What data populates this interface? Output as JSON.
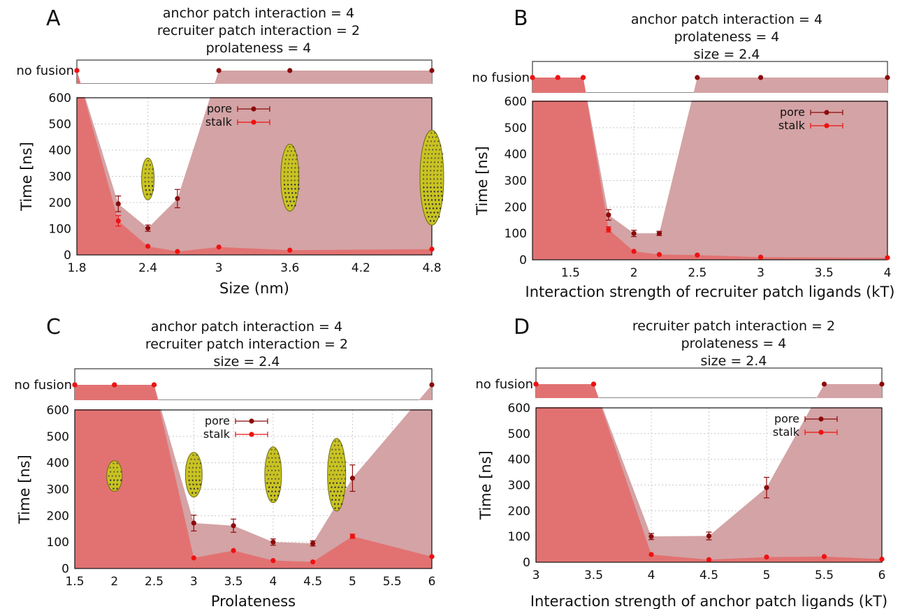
{
  "colors": {
    "pore": "#8b0a0a",
    "stalk": "#ee1111",
    "pore_fill": "#d4a3a5",
    "stalk_fill": "#e27272",
    "grid": "#c8c8c8",
    "particle_body": "#c9c322",
    "particle_dots": "#2b2b3b"
  },
  "legend": {
    "pore": "pore",
    "stalk": "stalk"
  },
  "no_fusion_label": "no fusion",
  "chart_data": [
    {
      "panel": "A",
      "type": "area",
      "title_lines": [
        "anchor patch interaction = 4",
        "recruiter patch interaction = 2",
        "prolateness = 4"
      ],
      "xlabel": "Size (nm)",
      "ylabel": "Time [ns]",
      "xlim": [
        1.8,
        4.8
      ],
      "ylim": [
        0,
        600
      ],
      "xticks": [
        "1.8",
        "2.4",
        "3",
        "3.6",
        "4.2",
        "4.8"
      ],
      "yticks": [
        "0",
        "100",
        "200",
        "300",
        "400",
        "500",
        "600"
      ],
      "grid": true,
      "legend_position": "top-center",
      "series": [
        {
          "name": "pore",
          "x": [
            1.8,
            2.15,
            2.4,
            2.65,
            3.0,
            3.6,
            4.8
          ],
          "y": [
            "no fusion",
            195,
            102,
            215,
            "no fusion",
            "no fusion",
            "no fusion"
          ],
          "err": [
            0,
            30,
            12,
            35,
            0,
            0,
            0
          ]
        },
        {
          "name": "stalk",
          "x": [
            1.8,
            2.15,
            2.4,
            2.65,
            3.0,
            3.6,
            4.8
          ],
          "y": [
            "no fusion",
            130,
            33,
            13,
            30,
            18,
            22
          ],
          "err": [
            0,
            20,
            0,
            0,
            0,
            0,
            0
          ]
        }
      ],
      "particles": [
        {
          "x": 2.4,
          "y": 290,
          "shape": "ellipsoid"
        },
        {
          "x": 3.6,
          "y": 295,
          "shape": "ellipsoid"
        },
        {
          "x": 4.8,
          "y": 295,
          "shape": "ellipsoid"
        }
      ]
    },
    {
      "panel": "B",
      "type": "area",
      "title_lines": [
        "anchor patch interaction = 4",
        "prolateness = 4",
        "size = 2.4"
      ],
      "xlabel": "Interaction strength of recruiter patch ligands (kT)",
      "ylabel": "Time [ns]",
      "xlim": [
        1.2,
        4.0
      ],
      "ylim": [
        0,
        600
      ],
      "xticks": [
        "1.5",
        "2",
        "2.5",
        "3",
        "3.5",
        "4"
      ],
      "yticks": [
        "0",
        "100",
        "200",
        "300",
        "400",
        "500",
        "600"
      ],
      "grid": true,
      "legend_position": "top-right",
      "series": [
        {
          "name": "pore",
          "x": [
            1.2,
            1.4,
            1.6,
            1.8,
            2.0,
            2.2,
            2.5,
            3.0,
            4.0
          ],
          "y": [
            "no fusion",
            "no fusion",
            "no fusion",
            170,
            100,
            100,
            "no fusion",
            "no fusion",
            "no fusion"
          ],
          "err": [
            0,
            0,
            0,
            20,
            12,
            8,
            0,
            0,
            0
          ]
        },
        {
          "name": "stalk",
          "x": [
            1.2,
            1.4,
            1.6,
            1.8,
            2.0,
            2.2,
            2.5,
            3.0,
            4.0
          ],
          "y": [
            "no fusion",
            "no fusion",
            "no fusion",
            115,
            32,
            20,
            18,
            10,
            8
          ],
          "err": [
            0,
            0,
            0,
            10,
            0,
            0,
            0,
            0,
            0
          ]
        }
      ]
    },
    {
      "panel": "C",
      "type": "area",
      "title_lines": [
        "anchor patch interaction = 4",
        "recruiter patch interaction = 2",
        "size = 2.4"
      ],
      "xlabel": "Prolateness",
      "ylabel": "Time [ns]",
      "xlim": [
        1.5,
        6.0
      ],
      "ylim": [
        0,
        600
      ],
      "xticks": [
        "1.5",
        "2",
        "2.5",
        "3",
        "3.5",
        "4",
        "4.5",
        "5",
        "5.5",
        "6"
      ],
      "yticks": [
        "0",
        "100",
        "200",
        "300",
        "400",
        "500",
        "600"
      ],
      "grid": true,
      "legend_position": "top-center",
      "series": [
        {
          "name": "pore",
          "x": [
            1.5,
            2.0,
            2.5,
            3.0,
            3.5,
            4.0,
            4.5,
            5.0,
            6.0
          ],
          "y": [
            "no fusion",
            "no fusion",
            "no fusion",
            172,
            162,
            100,
            95,
            342,
            "no fusion"
          ],
          "err": [
            0,
            0,
            0,
            30,
            25,
            12,
            10,
            50,
            0
          ]
        },
        {
          "name": "stalk",
          "x": [
            1.5,
            2.0,
            2.5,
            3.0,
            3.5,
            4.0,
            4.5,
            5.0,
            6.0
          ],
          "y": [
            "no fusion",
            "no fusion",
            "no fusion",
            40,
            68,
            30,
            25,
            122,
            45
          ],
          "err": [
            0,
            0,
            0,
            0,
            0,
            0,
            0,
            8,
            0
          ]
        }
      ],
      "particles": [
        {
          "x": 2.0,
          "y": 350,
          "shape": "ellipsoid"
        },
        {
          "x": 3.0,
          "y": 355,
          "shape": "ellipsoid"
        },
        {
          "x": 4.0,
          "y": 355,
          "shape": "ellipsoid"
        },
        {
          "x": 4.8,
          "y": 355,
          "shape": "ellipsoid"
        }
      ]
    },
    {
      "panel": "D",
      "type": "area",
      "title_lines": [
        "recruiter patch interaction = 2",
        "prolateness = 4",
        "size = 2.4"
      ],
      "xlabel": "Interaction strength of anchor patch ligands (kT)",
      "ylabel": "Time [ns]",
      "xlim": [
        3.0,
        6.0
      ],
      "ylim": [
        0,
        600
      ],
      "xticks": [
        "3",
        "3.5",
        "4",
        "4.5",
        "5",
        "5.5",
        "6"
      ],
      "yticks": [
        "0",
        "100",
        "200",
        "300",
        "400",
        "500",
        "600"
      ],
      "grid": true,
      "legend_position": "top-right",
      "series": [
        {
          "name": "pore",
          "x": [
            3.0,
            3.5,
            4.0,
            4.5,
            5.0,
            5.5,
            6.0
          ],
          "y": [
            "no fusion",
            "no fusion",
            100,
            102,
            290,
            "no fusion",
            "no fusion"
          ],
          "err": [
            0,
            0,
            12,
            15,
            40,
            0,
            0
          ]
        },
        {
          "name": "stalk",
          "x": [
            3.0,
            3.5,
            4.0,
            4.5,
            5.0,
            5.5,
            6.0
          ],
          "y": [
            "no fusion",
            "no fusion",
            30,
            10,
            20,
            22,
            12
          ],
          "err": [
            0,
            0,
            0,
            0,
            0,
            0,
            0
          ]
        }
      ]
    }
  ]
}
